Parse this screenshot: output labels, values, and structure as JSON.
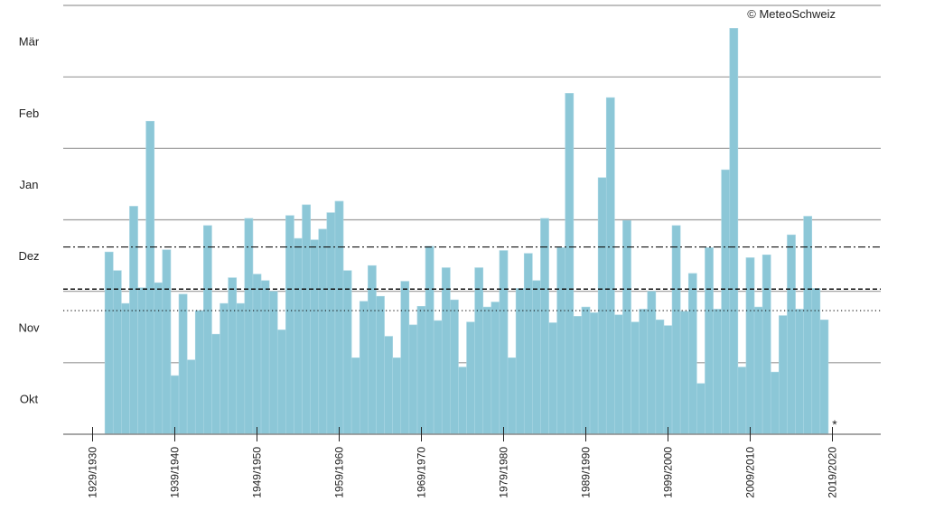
{
  "chart_data": {
    "type": "bar",
    "title": "",
    "xlabel": "",
    "ylabel": "",
    "credit": "© MeteoSchweiz",
    "footnote_marker": "*",
    "bar_color": "#8cc7d7",
    "y_ticks": [
      {
        "label": "Okt",
        "value": 0.5
      },
      {
        "label": "Nov",
        "value": 1.5
      },
      {
        "label": "Dez",
        "value": 2.5
      },
      {
        "label": "Jan",
        "value": 3.5
      },
      {
        "label": "Feb",
        "value": 4.5
      },
      {
        "label": "Mär",
        "value": 5.5
      }
    ],
    "y_gridlines": [
      0,
      1,
      2,
      3,
      4,
      5,
      6
    ],
    "ylim": [
      0,
      6
    ],
    "x_range": [
      1929,
      2022
    ],
    "x_ticks": [
      {
        "label": "1929/1930",
        "value": 1929
      },
      {
        "label": "1939/1940",
        "value": 1939
      },
      {
        "label": "1949/1950",
        "value": 1949
      },
      {
        "label": "1959/1960",
        "value": 1959
      },
      {
        "label": "1969/1970",
        "value": 1969
      },
      {
        "label": "1979/1980",
        "value": 1979
      },
      {
        "label": "1989/1990",
        "value": 1989
      },
      {
        "label": "1999/2000",
        "value": 1999
      },
      {
        "label": "2009/2010",
        "value": 2009
      },
      {
        "label": "2019/2020",
        "value": 2019
      }
    ],
    "reference_lines": [
      {
        "style": "dash-dot",
        "value": 2.62
      },
      {
        "style": "dashed",
        "value": 2.03
      },
      {
        "style": "dotted",
        "value": 1.73
      }
    ],
    "seasons": [
      1931,
      1932,
      1933,
      1934,
      1935,
      1936,
      1937,
      1938,
      1939,
      1940,
      1941,
      1942,
      1943,
      1944,
      1945,
      1946,
      1947,
      1948,
      1949,
      1950,
      1951,
      1952,
      1953,
      1954,
      1955,
      1956,
      1957,
      1958,
      1959,
      1960,
      1961,
      1962,
      1963,
      1964,
      1965,
      1966,
      1967,
      1968,
      1969,
      1970,
      1971,
      1972,
      1973,
      1974,
      1975,
      1976,
      1977,
      1978,
      1979,
      1980,
      1981,
      1982,
      1983,
      1984,
      1985,
      1986,
      1987,
      1988,
      1989,
      1990,
      1991,
      1992,
      1993,
      1994,
      1995,
      1996,
      1997,
      1998,
      1999,
      2000,
      2001,
      2002,
      2003,
      2004,
      2005,
      2006,
      2007,
      2008,
      2009,
      2010,
      2011,
      2012,
      2013,
      2014,
      2015,
      2016,
      2017,
      2018
    ],
    "values": [
      2.55,
      2.29,
      1.83,
      3.19,
      2.05,
      4.38,
      2.12,
      2.58,
      0.82,
      1.96,
      1.04,
      1.73,
      2.92,
      1.4,
      1.83,
      2.19,
      1.83,
      3.02,
      2.24,
      2.15,
      2.0,
      1.46,
      3.06,
      2.74,
      3.21,
      2.72,
      2.87,
      3.1,
      3.26,
      2.29,
      1.07,
      1.86,
      2.36,
      1.93,
      1.37,
      1.07,
      2.14,
      1.53,
      1.79,
      2.63,
      1.59,
      2.33,
      1.88,
      0.94,
      1.57,
      2.33,
      1.78,
      1.85,
      2.57,
      1.07,
      2.04,
      2.53,
      2.15,
      3.02,
      1.56,
      2.61,
      4.77,
      1.65,
      1.78,
      1.7,
      3.59,
      4.71,
      1.67,
      2.99,
      1.57,
      1.75,
      2.0,
      1.6,
      1.52,
      2.92,
      1.72,
      2.25,
      0.71,
      2.61,
      1.75,
      3.7,
      5.68,
      0.94,
      2.47,
      1.78,
      2.51,
      0.87,
      1.66,
      2.79,
      1.75,
      3.05,
      2.04,
      1.6
    ]
  }
}
